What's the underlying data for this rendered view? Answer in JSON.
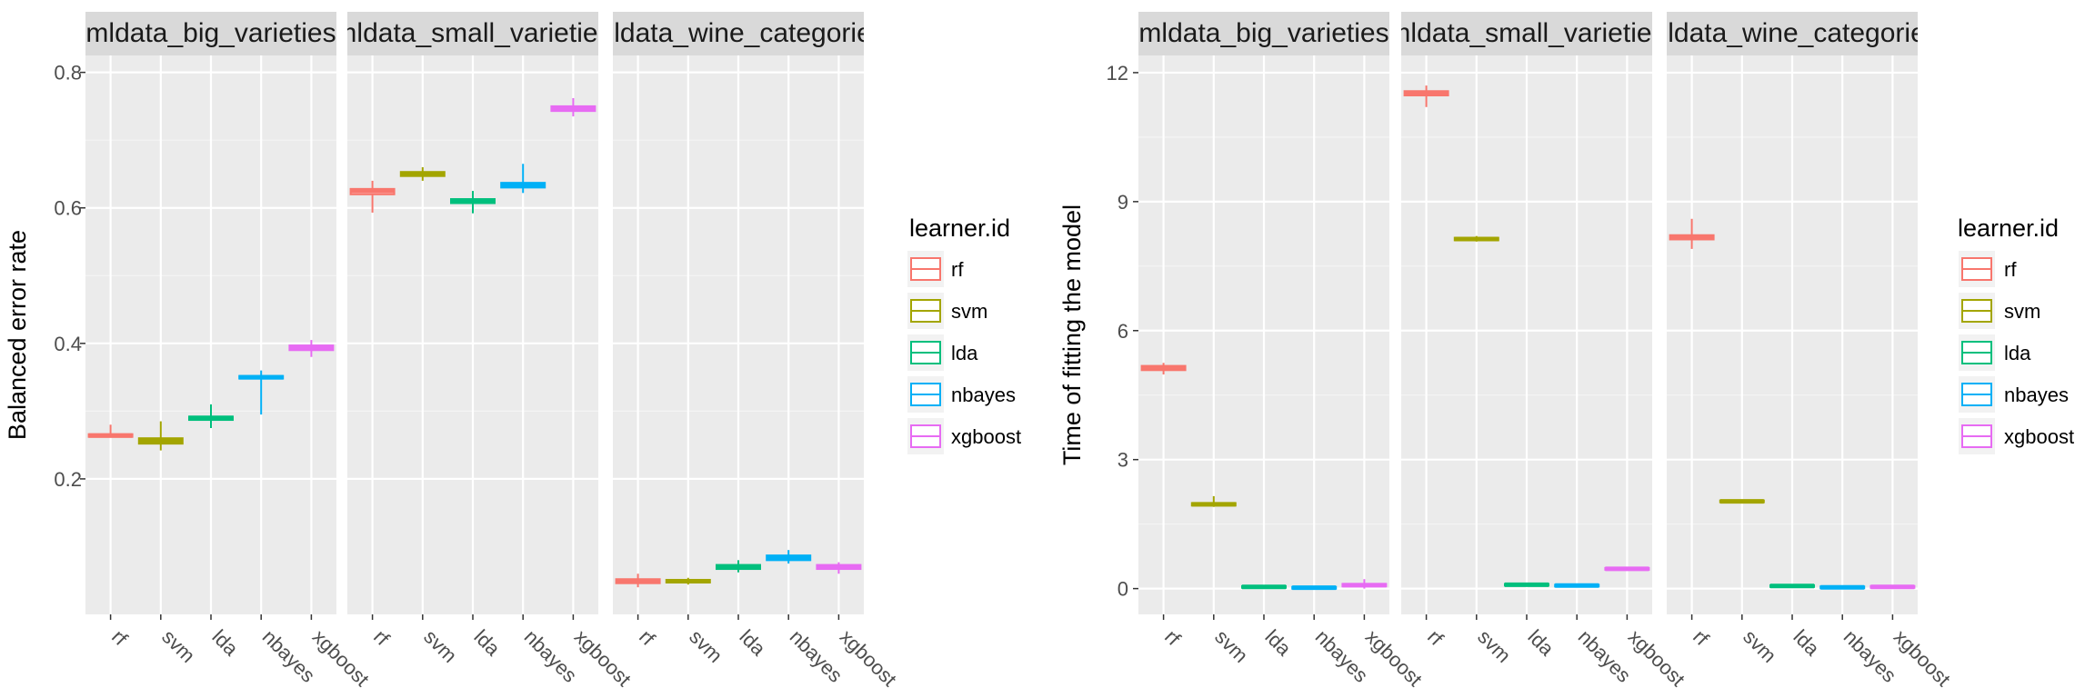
{
  "colors": {
    "panel_bg": "#EBEBEB",
    "strip_bg": "#D9D9D9",
    "grid_major": "#FFFFFF",
    "grid_minor": "#F4F4F4",
    "axis_text": "#4D4D4D",
    "rf": "#F8766D",
    "svm": "#A3A500",
    "lda": "#00BF7D",
    "nbayes": "#00B0F6",
    "xgboost": "#E76BF3"
  },
  "chart_data": [
    {
      "type": "boxplot",
      "ylabel": "Balanced error rate",
      "ylim": [
        0.0,
        0.825
      ],
      "y_ticks": [
        0.2,
        0.4,
        0.6,
        0.8
      ],
      "y_tick_labels": [
        "0.2",
        "0.4",
        "0.6",
        "0.8"
      ],
      "categories": [
        "rf",
        "svm",
        "lda",
        "nbayes",
        "xgboost"
      ],
      "legend": {
        "title": "learner.id",
        "entries": [
          "rf",
          "svm",
          "lda",
          "nbayes",
          "xgboost"
        ],
        "position": "right"
      },
      "grid": true,
      "facets": [
        {
          "strip": "mldata_big_varieties",
          "boxes": [
            {
              "learner": "rf",
              "min": 0.262,
              "q1": 0.262,
              "median": 0.264,
              "q3": 0.266,
              "max": 0.28
            },
            {
              "learner": "svm",
              "min": 0.242,
              "q1": 0.252,
              "median": 0.256,
              "q3": 0.26,
              "max": 0.285
            },
            {
              "learner": "lda",
              "min": 0.275,
              "q1": 0.287,
              "median": 0.29,
              "q3": 0.292,
              "max": 0.31
            },
            {
              "learner": "nbayes",
              "min": 0.295,
              "q1": 0.348,
              "median": 0.35,
              "q3": 0.352,
              "max": 0.36
            },
            {
              "learner": "xgboost",
              "min": 0.38,
              "q1": 0.39,
              "median": 0.393,
              "q3": 0.397,
              "max": 0.405
            }
          ]
        },
        {
          "strip": "mldata_small_varieties",
          "boxes": [
            {
              "learner": "rf",
              "min": 0.593,
              "q1": 0.62,
              "median": 0.625,
              "q3": 0.628,
              "max": 0.64
            },
            {
              "learner": "svm",
              "min": 0.64,
              "q1": 0.647,
              "median": 0.65,
              "q3": 0.653,
              "max": 0.66
            },
            {
              "learner": "lda",
              "min": 0.592,
              "q1": 0.607,
              "median": 0.61,
              "q3": 0.613,
              "max": 0.625
            },
            {
              "learner": "nbayes",
              "min": 0.622,
              "q1": 0.63,
              "median": 0.633,
              "q3": 0.637,
              "max": 0.665
            },
            {
              "learner": "xgboost",
              "min": 0.735,
              "q1": 0.743,
              "median": 0.746,
              "q3": 0.75,
              "max": 0.762
            }
          ]
        },
        {
          "strip": "mldata_wine_categories",
          "boxes": [
            {
              "learner": "rf",
              "min": 0.04,
              "q1": 0.046,
              "median": 0.049,
              "q3": 0.052,
              "max": 0.06
            },
            {
              "learner": "svm",
              "min": 0.044,
              "q1": 0.047,
              "median": 0.049,
              "q3": 0.051,
              "max": 0.054
            },
            {
              "learner": "lda",
              "min": 0.062,
              "q1": 0.067,
              "median": 0.07,
              "q3": 0.073,
              "max": 0.08
            },
            {
              "learner": "nbayes",
              "min": 0.075,
              "q1": 0.08,
              "median": 0.083,
              "q3": 0.087,
              "max": 0.095
            },
            {
              "learner": "xgboost",
              "min": 0.06,
              "q1": 0.067,
              "median": 0.07,
              "q3": 0.073,
              "max": 0.077
            }
          ]
        }
      ]
    },
    {
      "type": "boxplot",
      "ylabel": "Time of fitting the model",
      "ylim": [
        -0.6,
        12.4
      ],
      "y_ticks": [
        0,
        3,
        6,
        9,
        12
      ],
      "y_tick_labels": [
        "0",
        "3",
        "6",
        "9",
        "12"
      ],
      "categories": [
        "rf",
        "svm",
        "lda",
        "nbayes",
        "xgboost"
      ],
      "legend": {
        "title": "learner.id",
        "entries": [
          "rf",
          "svm",
          "lda",
          "nbayes",
          "xgboost"
        ],
        "position": "right"
      },
      "grid": true,
      "facets": [
        {
          "strip": "mldata_big_varieties",
          "boxes": [
            {
              "learner": "rf",
              "min": 4.98,
              "q1": 5.08,
              "median": 5.13,
              "q3": 5.18,
              "max": 5.25
            },
            {
              "learner": "svm",
              "min": 1.9,
              "q1": 1.93,
              "median": 1.96,
              "q3": 1.99,
              "max": 2.15
            },
            {
              "learner": "lda",
              "min": 0.01,
              "q1": 0.02,
              "median": 0.04,
              "q3": 0.06,
              "max": 0.08
            },
            {
              "learner": "nbayes",
              "min": 0.0,
              "q1": 0.01,
              "median": 0.02,
              "q3": 0.04,
              "max": 0.06
            },
            {
              "learner": "xgboost",
              "min": 0.0,
              "q1": 0.05,
              "median": 0.08,
              "q3": 0.11,
              "max": 0.22
            }
          ]
        },
        {
          "strip": "mldata_small_varieties",
          "boxes": [
            {
              "learner": "rf",
              "min": 11.2,
              "q1": 11.47,
              "median": 11.52,
              "q3": 11.57,
              "max": 11.7
            },
            {
              "learner": "svm",
              "min": 8.07,
              "q1": 8.1,
              "median": 8.13,
              "q3": 8.16,
              "max": 8.2
            },
            {
              "learner": "lda",
              "min": 0.05,
              "q1": 0.07,
              "median": 0.09,
              "q3": 0.11,
              "max": 0.12
            },
            {
              "learner": "nbayes",
              "min": 0.03,
              "q1": 0.05,
              "median": 0.07,
              "q3": 0.09,
              "max": 0.1
            },
            {
              "learner": "xgboost",
              "min": 0.42,
              "q1": 0.44,
              "median": 0.46,
              "q3": 0.48,
              "max": 0.5
            }
          ]
        },
        {
          "strip": "mldata_wine_categories",
          "boxes": [
            {
              "learner": "rf",
              "min": 7.9,
              "q1": 8.12,
              "median": 8.17,
              "q3": 8.22,
              "max": 8.6
            },
            {
              "learner": "svm",
              "min": 1.99,
              "q1": 2.01,
              "median": 2.03,
              "q3": 2.05,
              "max": 2.07
            },
            {
              "learner": "lda",
              "min": 0.02,
              "q1": 0.04,
              "median": 0.06,
              "q3": 0.08,
              "max": 0.09
            },
            {
              "learner": "nbayes",
              "min": 0.0,
              "q1": 0.01,
              "median": 0.03,
              "q3": 0.05,
              "max": 0.06
            },
            {
              "learner": "xgboost",
              "min": 0.01,
              "q1": 0.02,
              "median": 0.04,
              "q3": 0.06,
              "max": 0.07
            }
          ]
        }
      ]
    }
  ]
}
